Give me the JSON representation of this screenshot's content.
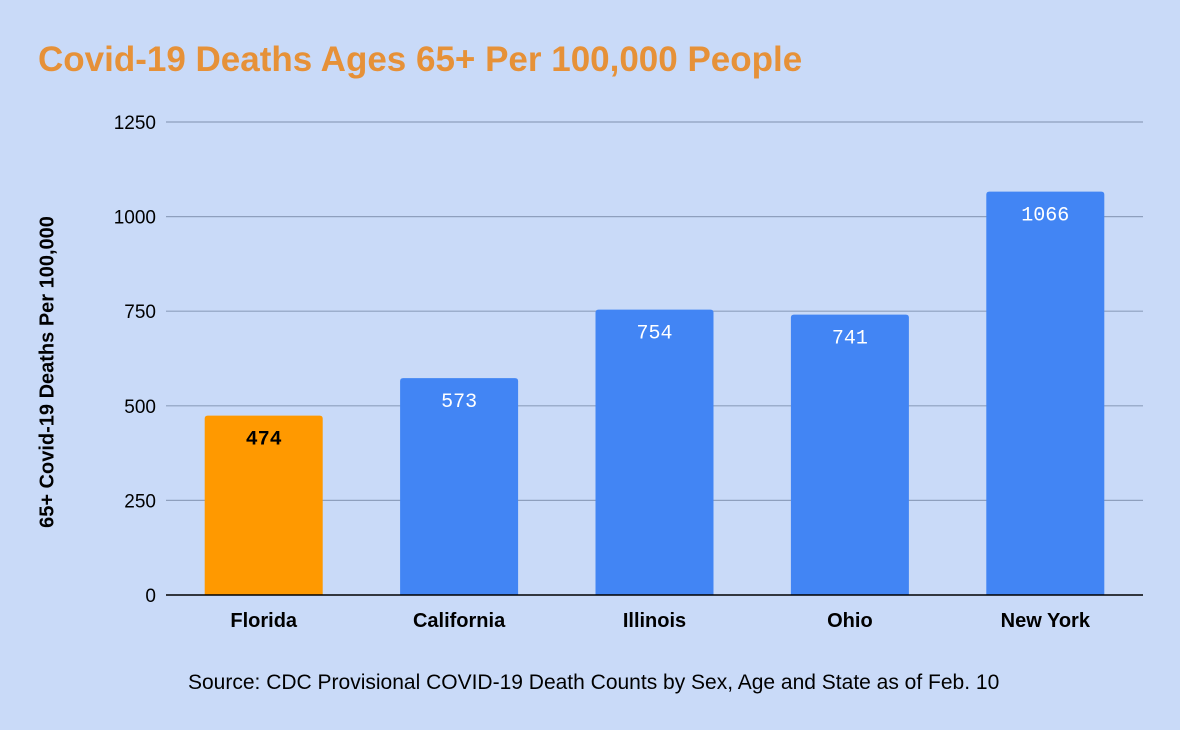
{
  "chart_data": {
    "type": "bar",
    "title": "Covid-19 Deaths Ages 65+ Per 100,000 People",
    "xlabel": "",
    "ylabel": "65+ Covid-19 Deaths Per 100,000",
    "categories": [
      "Florida",
      "California",
      "Illinois",
      "Ohio",
      "New York"
    ],
    "values": [
      474,
      573,
      754,
      741,
      1066
    ],
    "data_labels": [
      "474",
      "573",
      "754",
      "741",
      "1066"
    ],
    "ylim": [
      0,
      1250
    ],
    "yticks": [
      0,
      250,
      500,
      750,
      1000,
      1250
    ],
    "ytick_labels": [
      "0",
      "250",
      "500",
      "750",
      "1000",
      "1250"
    ],
    "grid": true,
    "legend": "none",
    "highlight_category": "Florida",
    "colors": {
      "default_bar": "#4285f4",
      "highlight_bar": "#ff9900",
      "default_label": "#ffffff",
      "highlight_label": "#000000",
      "gridline": "#8e9fbd",
      "axis": "#000000",
      "title": "#e69138",
      "background": "#c9daf8"
    }
  },
  "footer": {
    "source": "Source: CDC Provisional COVID-19 Death Counts by Sex, Age and State as of Feb. 10"
  }
}
